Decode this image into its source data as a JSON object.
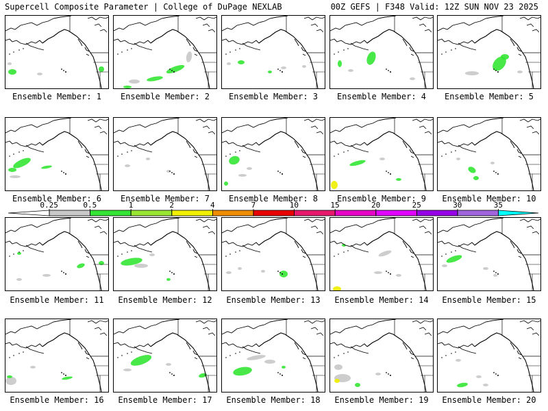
{
  "header": {
    "left_title": "Supercell Composite Parameter | College of DuPage NEXLAB",
    "right_title": "00Z GEFS | F348 Valid: 12Z SUN NOV 23 2025"
  },
  "member_label_prefix": "Ensemble Member: ",
  "members": [
    "1",
    "2",
    "3",
    "4",
    "5",
    "6",
    "7",
    "8",
    "9",
    "10",
    "11",
    "12",
    "13",
    "14",
    "15",
    "16",
    "17",
    "18",
    "19",
    "20"
  ],
  "colorbar": {
    "levels": [
      "0.25",
      "0.5",
      "1",
      "2",
      "4",
      "7",
      "10",
      "15",
      "20",
      "25",
      "30",
      "35"
    ],
    "colors": [
      "#ffffff",
      "#c8c8c8",
      "#33e633",
      "#99e633",
      "#f0f000",
      "#f08c00",
      "#e60000",
      "#e6196e",
      "#e600c8",
      "#e100ff",
      "#9600e6",
      "#a064dc",
      "#00ffff"
    ]
  },
  "legend_icon": "colorbar-arrow-icon"
}
